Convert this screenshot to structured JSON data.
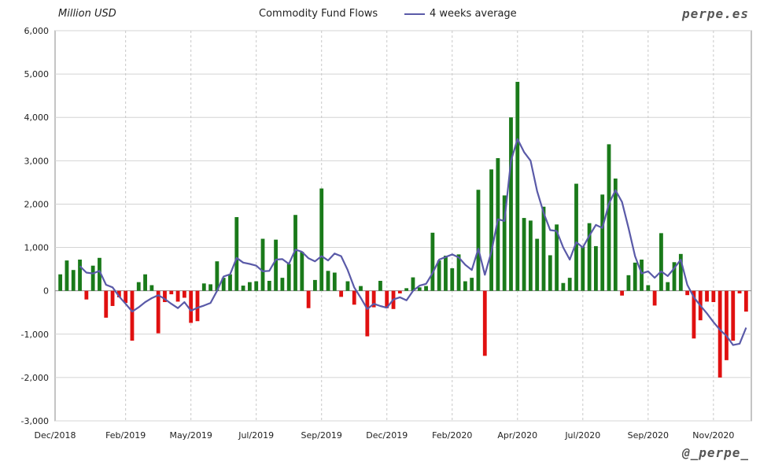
{
  "header": {
    "unit": "Million USD",
    "title": "Commodity Fund Flows",
    "legend_label": "4 weeks average",
    "brand": "perpe.es"
  },
  "footer": {
    "handle": "@_perpe_"
  },
  "chart_data": {
    "type": "bar",
    "title": "Commodity Fund Flows",
    "ylabel": "Million USD",
    "ylim": [
      -3000,
      6000
    ],
    "yticks": [
      6000,
      5000,
      4000,
      3000,
      2000,
      1000,
      0,
      -1000,
      -2000,
      -3000
    ],
    "ytick_labels": [
      "6,000",
      "5,000",
      "4,000",
      "3,000",
      "2,000",
      "1,000",
      "0",
      "-1,000",
      "-2,000",
      "-3,000"
    ],
    "x_tick_labels": [
      "Dec/2018",
      "Feb/2019",
      "May/2019",
      "Jul/2019",
      "Sep/2019",
      "Dec/2019",
      "Feb/2020",
      "Apr/2020",
      "Jul/2020",
      "Sep/2020",
      "Nov/2020"
    ],
    "x_tick_weeks": [
      0,
      10,
      20,
      30,
      40,
      50,
      60,
      70,
      80,
      90,
      100
    ],
    "grid": true,
    "positive_color": "#1a7a1a",
    "negative_color": "#e01010",
    "line_color": "#5a5aa8",
    "series": [
      {
        "name": "Commodity Fund Flows",
        "kind": "bar",
        "values": [
          380,
          700,
          480,
          720,
          -200,
          580,
          760,
          -620,
          -350,
          -150,
          -280,
          -1150,
          200,
          380,
          130,
          -980,
          -260,
          -80,
          -250,
          -160,
          -740,
          -700,
          170,
          150,
          680,
          300,
          380,
          1700,
          120,
          200,
          220,
          1200,
          230,
          1180,
          300,
          620,
          1750,
          900,
          -400,
          250,
          2360,
          460,
          420,
          -140,
          220,
          -320,
          110,
          -1050,
          -380,
          230,
          -400,
          -420,
          -60,
          60,
          310,
          80,
          110,
          1340,
          700,
          810,
          520,
          840,
          220,
          300,
          2330,
          -1500,
          2800,
          3060,
          2200,
          4000,
          4820,
          1680,
          1620,
          1200,
          1940,
          820,
          1530,
          180,
          300,
          2470,
          1020,
          1560,
          1030,
          2220,
          3380,
          2590,
          -110,
          360,
          650,
          720,
          130,
          -340,
          1330,
          200,
          660,
          850,
          -100,
          -1100,
          -680,
          -250,
          -260,
          -2000,
          -1600,
          -1150,
          -60,
          -480
        ]
      },
      {
        "name": "4 weeks average",
        "kind": "line",
        "values": [
          null,
          null,
          null,
          570,
          420,
          400,
          460,
          140,
          80,
          -130,
          -300,
          -480,
          -380,
          -260,
          -170,
          -100,
          -190,
          -300,
          -400,
          -260,
          -460,
          -390,
          -340,
          -280,
          0,
          330,
          380,
          760,
          650,
          620,
          580,
          450,
          460,
          720,
          730,
          620,
          950,
          900,
          750,
          680,
          800,
          700,
          860,
          800,
          480,
          80,
          -160,
          -420,
          -300,
          -350,
          -390,
          -200,
          -150,
          -220,
          0,
          120,
          160,
          410,
          720,
          780,
          840,
          770,
          600,
          480,
          970,
          370,
          900,
          1650,
          1610,
          3000,
          3500,
          3200,
          3000,
          2300,
          1800,
          1400,
          1380,
          1000,
          720,
          1120,
          1000,
          1270,
          1520,
          1450,
          2010,
          2320,
          2050,
          1450,
          800,
          400,
          450,
          300,
          450,
          340,
          520,
          720,
          140,
          -150,
          -340,
          -520,
          -720,
          -900,
          -1040,
          -1250,
          -1220,
          -850
        ]
      }
    ]
  }
}
